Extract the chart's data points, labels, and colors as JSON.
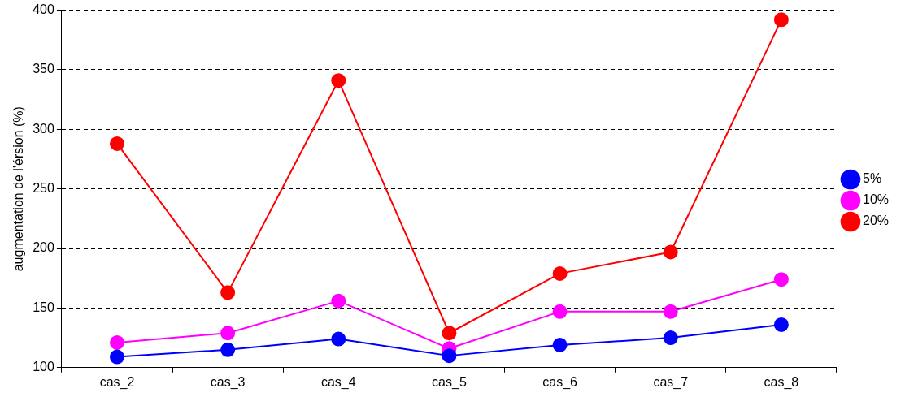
{
  "chart_data": {
    "type": "line",
    "ylabel": "augmentation de l'érsion (%)",
    "categories": [
      "cas_2",
      "cas_3",
      "cas_4",
      "cas_5",
      "cas_6",
      "cas_7",
      "cas_8"
    ],
    "series": [
      {
        "name": "5%",
        "color": "#0000ff",
        "values": [
          109,
          115,
          124,
          110,
          119,
          125,
          136
        ]
      },
      {
        "name": "10%",
        "color": "#ff00ff",
        "values": [
          121,
          129,
          156,
          116,
          147,
          147,
          174
        ]
      },
      {
        "name": "20%",
        "color": "#ff0000",
        "values": [
          288,
          163,
          341,
          129,
          179,
          197,
          392
        ]
      }
    ],
    "ylim": [
      100,
      400
    ],
    "yticks": [
      100,
      150,
      200,
      250,
      300,
      350,
      400
    ],
    "grid": "y",
    "legend": "right",
    "marker": "circle"
  }
}
